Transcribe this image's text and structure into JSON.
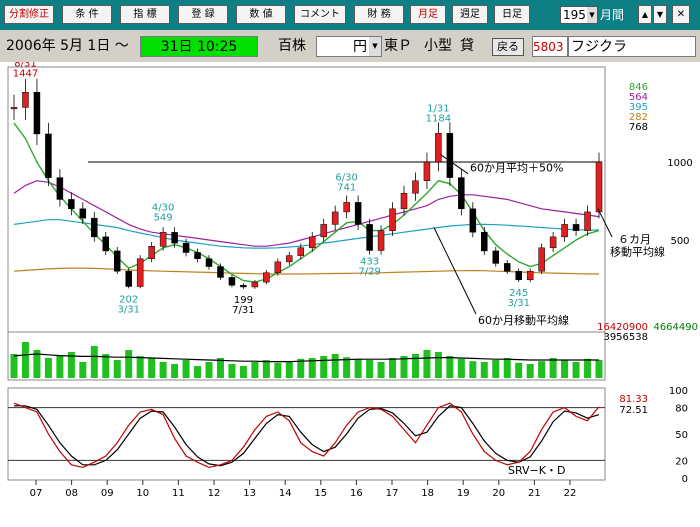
{
  "toolbar": {
    "buttons": [
      {
        "label": "分割修正",
        "style": "red"
      },
      {
        "label": "条 件",
        "style": "normal"
      },
      {
        "label": "指 標",
        "style": "normal"
      },
      {
        "label": "登 録",
        "style": "normal"
      },
      {
        "label": "数 値",
        "style": "normal"
      },
      {
        "label": "コメント",
        "style": "normal"
      },
      {
        "label": "財 務",
        "style": "normal"
      },
      {
        "label": "月足",
        "style": "red"
      },
      {
        "label": "週足",
        "style": "normal"
      },
      {
        "label": "日足",
        "style": "normal"
      }
    ],
    "period_value": "195",
    "period_unit": "月間",
    "up_arrow": "▲",
    "down_arrow": "▼",
    "close_glyph": "✕"
  },
  "infobar": {
    "start_date": "2006年  5月  1日 ～",
    "end_date": "31日  10:25",
    "unit": "百株",
    "currency": "円",
    "market": "東Ｐ",
    "size": "小型",
    "lending": "貸",
    "back_button": "戻る",
    "code": "5803",
    "name": "フジクラ"
  },
  "chart_data": [
    {
      "type": "candlestick",
      "panel": "price",
      "price_ticks": [
        "1000",
        "500"
      ],
      "legend_values": [
        {
          "value": "846",
          "color": "#2ea82e"
        },
        {
          "value": "564",
          "color": "#a020a0"
        },
        {
          "value": "395",
          "color": "#20a0c0"
        },
        {
          "value": "282",
          "color": "#c08020"
        },
        {
          "value": "768",
          "color": "#000000"
        }
      ],
      "reference_line": 1000,
      "annotations": [
        {
          "date": "8/31",
          "value": "1447"
        },
        {
          "date": "4/30",
          "value": "549"
        },
        {
          "date": "3/31",
          "value": "202"
        },
        {
          "date": "7/31",
          "value": "199"
        },
        {
          "date": "6/30",
          "value": "741"
        },
        {
          "date": "7/29",
          "value": "433"
        },
        {
          "date": "1/31",
          "value": "1184"
        },
        {
          "date": "3/31",
          "value": "245"
        }
      ],
      "notes": [
        "60か月平均＋50%",
        "６カ月",
        "移動平均線",
        "60か月移動平均線"
      ],
      "price_path": [
        1350,
        1447,
        1180,
        900,
        760,
        700,
        640,
        520,
        430,
        300,
        202,
        380,
        460,
        549,
        480,
        420,
        380,
        330,
        260,
        210,
        199,
        230,
        290,
        360,
        400,
        450,
        520,
        600,
        680,
        741,
        600,
        433,
        560,
        700,
        800,
        880,
        1000,
        1184,
        900,
        700,
        550,
        430,
        350,
        300,
        245,
        300,
        450,
        520,
        600,
        560,
        680,
        1000
      ],
      "ma6_path": [
        1250,
        1150,
        1000,
        880,
        780,
        700,
        620,
        540,
        470,
        390,
        320,
        350,
        400,
        450,
        470,
        450,
        420,
        380,
        330,
        280,
        240,
        230,
        250,
        290,
        330,
        380,
        430,
        490,
        550,
        610,
        620,
        560,
        560,
        600,
        660,
        730,
        800,
        880,
        860,
        790,
        680,
        560,
        470,
        410,
        360,
        330,
        350,
        400,
        450,
        500,
        540,
        560
      ],
      "ma24_path": [
        800,
        850,
        880,
        870,
        840,
        800,
        760,
        720,
        680,
        640,
        600,
        570,
        550,
        540,
        530,
        520,
        510,
        500,
        490,
        480,
        470,
        460,
        460,
        470,
        480,
        500,
        520,
        540,
        560,
        580,
        600,
        620,
        640,
        660,
        680,
        700,
        720,
        760,
        780,
        790,
        790,
        780,
        770,
        760,
        740,
        720,
        700,
        690,
        680,
        670,
        660,
        650
      ],
      "ma60_path": [
        600,
        610,
        620,
        630,
        630,
        620,
        610,
        600,
        590,
        580,
        560,
        545,
        530,
        515,
        500,
        490,
        480,
        470,
        460,
        455,
        450,
        448,
        448,
        450,
        455,
        460,
        470,
        480,
        490,
        500,
        510,
        520,
        530,
        540,
        550,
        560,
        570,
        580,
        590,
        595,
        600,
        600,
        598,
        595,
        590,
        585,
        580,
        575,
        570,
        566,
        564,
        564
      ],
      "ma120_path": [
        300,
        305,
        310,
        315,
        318,
        320,
        320,
        318,
        315,
        312,
        308,
        305,
        302,
        300,
        298,
        296,
        294,
        292,
        290,
        288,
        286,
        284,
        283,
        282,
        282,
        282,
        283,
        284,
        285,
        286,
        287,
        288,
        290,
        292,
        294,
        296,
        298,
        300,
        302,
        303,
        304,
        303,
        300,
        298,
        295,
        292,
        290,
        288,
        286,
        284,
        283,
        282
      ]
    },
    {
      "type": "bar",
      "panel": "volume",
      "legend_values": [
        {
          "value": "16420900",
          "color": "#c00000"
        },
        {
          "value": "4664490",
          "color": "#008000"
        },
        {
          "value": "3956538",
          "color": "#000000"
        }
      ],
      "volume_path": [
        60,
        90,
        70,
        50,
        55,
        65,
        40,
        80,
        60,
        45,
        70,
        55,
        50,
        40,
        35,
        45,
        30,
        40,
        50,
        35,
        30,
        40,
        45,
        38,
        42,
        48,
        50,
        55,
        60,
        52,
        48,
        45,
        40,
        50,
        55,
        60,
        70,
        65,
        55,
        48,
        42,
        40,
        45,
        50,
        38,
        35,
        42,
        50,
        45,
        40,
        48,
        45
      ],
      "volume_ma_path": [
        55,
        58,
        60,
        58,
        56,
        55,
        54,
        54,
        53,
        52,
        52,
        51,
        50,
        49,
        48,
        47,
        46,
        45,
        44,
        43,
        42,
        42,
        41,
        41,
        41,
        42,
        43,
        44,
        45,
        46,
        47,
        47,
        47,
        47,
        48,
        49,
        50,
        51,
        51,
        50,
        49,
        48,
        47,
        47,
        46,
        45,
        45,
        45,
        45,
        45,
        45,
        45
      ]
    },
    {
      "type": "line",
      "panel": "oscillator",
      "title": "SRV−K・D",
      "ticks": [
        "100",
        "80",
        "50",
        "20",
        "0"
      ],
      "legend_values": [
        {
          "value": "81.33",
          "color": "#c00000"
        },
        {
          "value": "72.51",
          "color": "#000000"
        }
      ],
      "k_path": [
        85,
        80,
        75,
        50,
        30,
        15,
        12,
        18,
        25,
        40,
        60,
        75,
        78,
        72,
        45,
        25,
        18,
        12,
        15,
        20,
        35,
        55,
        70,
        75,
        65,
        40,
        30,
        25,
        40,
        60,
        75,
        80,
        78,
        70,
        55,
        40,
        60,
        80,
        85,
        75,
        50,
        30,
        20,
        15,
        18,
        30,
        55,
        75,
        80,
        70,
        65,
        81
      ],
      "d_path": [
        82,
        82,
        78,
        60,
        40,
        25,
        15,
        15,
        20,
        32,
        50,
        68,
        76,
        75,
        58,
        38,
        24,
        16,
        14,
        18,
        28,
        45,
        62,
        72,
        70,
        52,
        38,
        30,
        35,
        50,
        68,
        78,
        79,
        74,
        62,
        48,
        52,
        70,
        82,
        80,
        62,
        42,
        28,
        20,
        18,
        24,
        42,
        64,
        76,
        74,
        68,
        72
      ]
    },
    {
      "type": "axis",
      "panel": "x-axis",
      "x_ticks": [
        "07",
        "08",
        "09",
        "10",
        "11",
        "12",
        "13",
        "14",
        "15",
        "16",
        "17",
        "18",
        "19",
        "20",
        "21",
        "22"
      ]
    }
  ]
}
